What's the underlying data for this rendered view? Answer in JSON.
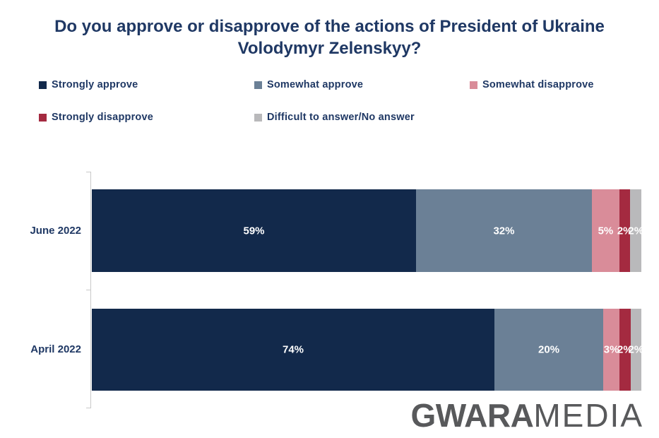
{
  "title": {
    "line1": "Do you approve or disapprove of the actions of President of Ukraine",
    "line2": "Volodymyr Zelenskyy?"
  },
  "colors": {
    "title_text": "#1f3864",
    "axis_line": "#c9c9c9",
    "bar_value_text": "#ffffff",
    "logo_gray": "#58595b"
  },
  "chart_data": {
    "type": "bar",
    "orientation": "horizontal",
    "stacked": true,
    "grid": false,
    "legend_position": "top",
    "categories": [
      "June 2022",
      "April 2022"
    ],
    "series": [
      {
        "name": "Strongly approve",
        "color": "#12294b",
        "values": [
          59,
          74
        ]
      },
      {
        "name": "Somewhat approve",
        "color": "#6b8096",
        "values": [
          32,
          20
        ]
      },
      {
        "name": "Somewhat disapprove",
        "color": "#d98c99",
        "values": [
          5,
          3
        ]
      },
      {
        "name": "Strongly disapprove",
        "color": "#a42a40",
        "values": [
          2,
          2
        ]
      },
      {
        "name": "Difficult to answer/No answer",
        "color": "#b9b9bb",
        "values": [
          2,
          2
        ]
      }
    ],
    "value_suffix": "%",
    "data_labels": [
      [
        "59%",
        "32%",
        "5%",
        "2%",
        "2%"
      ],
      [
        "74%",
        "20%",
        "3%",
        "2%",
        "2%"
      ]
    ]
  },
  "logo": {
    "bold": "GWARA",
    "light": "MEDIA"
  }
}
